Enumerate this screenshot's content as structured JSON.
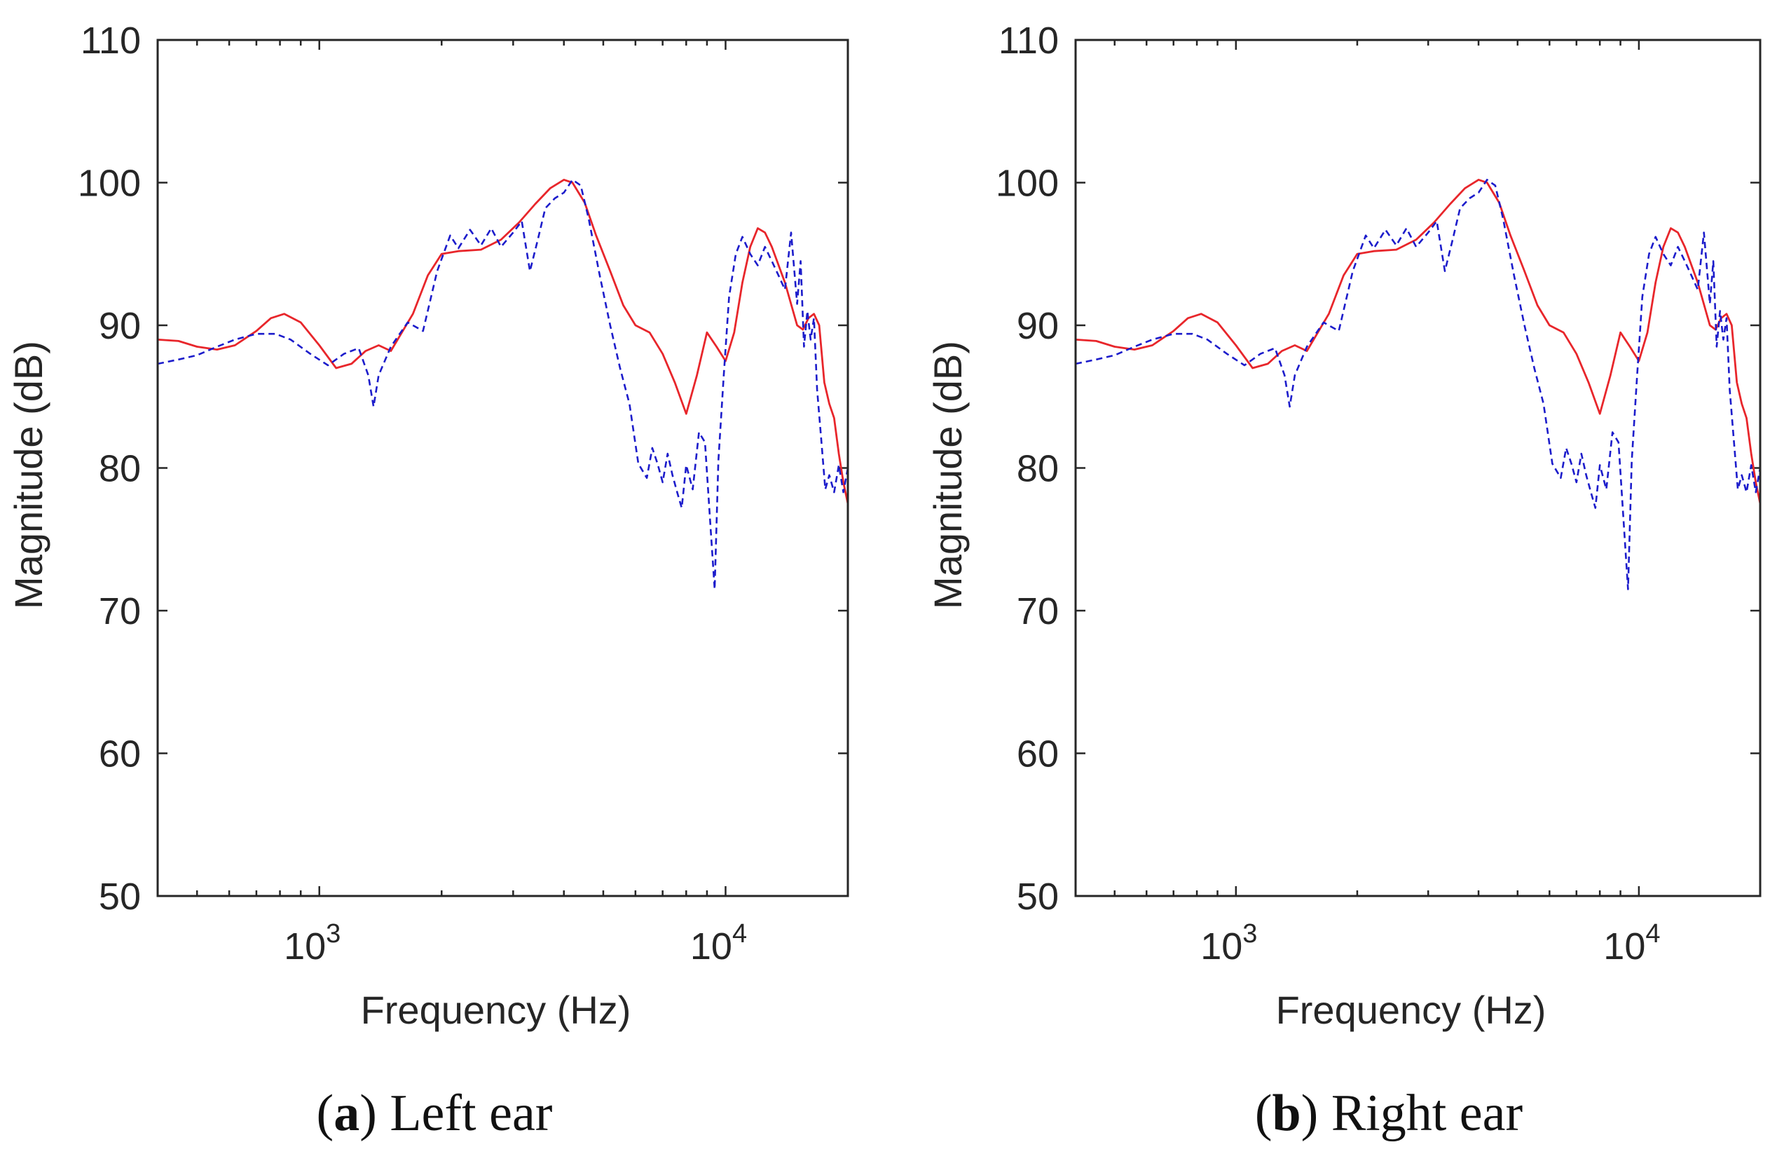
{
  "colors": {
    "measured": "#e8262b",
    "simulated": "#1c1ccb",
    "axis": "#262626"
  },
  "chart_data": [
    {
      "type": "line",
      "panel_letter": "a",
      "caption": "Left ear",
      "xlabel": "Frequency (Hz)",
      "ylabel": "Magnitude (dB)",
      "xscale": "log",
      "xlim": [
        400,
        20000
      ],
      "ylim": [
        50,
        110
      ],
      "yticks": [
        50,
        60,
        70,
        80,
        90,
        100,
        110
      ],
      "ytick_labels": [
        "50",
        "60",
        "70",
        "80",
        "90",
        "100",
        "110"
      ],
      "xticks": [
        {
          "value": 1000,
          "base": "10",
          "exp": "3"
        },
        {
          "value": 10000,
          "base": "10",
          "exp": "4"
        }
      ],
      "grid": false,
      "series": [
        {
          "name": "solid red",
          "style": "solid",
          "color": "#e8262b",
          "x": [
            400,
            450,
            500,
            560,
            620,
            700,
            760,
            820,
            900,
            1000,
            1100,
            1200,
            1300,
            1400,
            1500,
            1700,
            1850,
            2000,
            2200,
            2500,
            2800,
            3100,
            3400,
            3700,
            4000,
            4200,
            4500,
            4800,
            5200,
            5600,
            6000,
            6500,
            7000,
            7500,
            8000,
            8500,
            9000,
            9500,
            10000,
            10500,
            11000,
            11500,
            12000,
            12500,
            13000,
            14000,
            15000,
            15500,
            16000,
            16500,
            17000,
            17500,
            18000,
            18500,
            19000,
            19500,
            20000
          ],
          "y": [
            89,
            88.9,
            88.5,
            88.3,
            88.6,
            89.6,
            90.5,
            90.8,
            90.2,
            88.6,
            87,
            87.3,
            88.2,
            88.6,
            88.2,
            90.8,
            93.5,
            95,
            95.2,
            95.3,
            96,
            97.2,
            98.5,
            99.6,
            100.2,
            100,
            98.6,
            96.3,
            93.8,
            91.4,
            90,
            89.5,
            88,
            86,
            83.8,
            86.5,
            89.5,
            88.5,
            87.5,
            89.5,
            93,
            95.5,
            96.8,
            96.5,
            95.5,
            93,
            90,
            89.7,
            90.5,
            90.8,
            90,
            86,
            84.5,
            83.5,
            81,
            79,
            77.5
          ]
        },
        {
          "name": "dashed blue",
          "style": "dashed",
          "color": "#1c1ccb",
          "x": [
            400,
            450,
            500,
            560,
            620,
            700,
            780,
            850,
            950,
            1050,
            1150,
            1250,
            1320,
            1360,
            1400,
            1500,
            1650,
            1800,
            1950,
            2100,
            2200,
            2350,
            2500,
            2650,
            2800,
            3000,
            3150,
            3300,
            3450,
            3600,
            3800,
            4000,
            4200,
            4400,
            4600,
            4900,
            5200,
            5500,
            5800,
            6100,
            6400,
            6600,
            6800,
            7000,
            7200,
            7400,
            7600,
            7800,
            8000,
            8300,
            8600,
            8900,
            9200,
            9400,
            9600,
            9900,
            10200,
            10600,
            11000,
            11500,
            12000,
            12500,
            13000,
            13500,
            14000,
            14500,
            15000,
            15300,
            15600,
            15900,
            16200,
            16500,
            16800,
            17200,
            17600,
            18000,
            18500,
            19000,
            19500,
            20000
          ],
          "y": [
            87.3,
            87.6,
            87.9,
            88.5,
            89,
            89.4,
            89.4,
            89,
            88,
            87.2,
            88,
            88.4,
            86.5,
            84.3,
            86.5,
            88.5,
            90.2,
            89.6,
            93.8,
            96.3,
            95.4,
            96.7,
            95.6,
            96.8,
            95.5,
            96.5,
            97.3,
            93.8,
            96,
            98.2,
            98.9,
            99.3,
            100.2,
            99.8,
            97.5,
            93.5,
            90,
            87,
            84.5,
            80.3,
            79.3,
            81.4,
            80.3,
            79,
            81,
            79.5,
            78.3,
            77.2,
            80.2,
            78.5,
            82.5,
            81.8,
            75.5,
            71.5,
            80.5,
            86.5,
            92,
            95,
            96.2,
            95,
            94.2,
            95.5,
            94.5,
            93.5,
            92.5,
            96.5,
            91.5,
            94.5,
            88.5,
            91,
            89,
            90.5,
            85.5,
            82,
            78.5,
            79.5,
            78.3,
            80.2,
            78.3,
            80
          ]
        }
      ]
    },
    {
      "type": "line",
      "panel_letter": "b",
      "caption": "Right ear",
      "xlabel": "Frequency (Hz)",
      "ylabel": "Magnitude (dB)",
      "xscale": "log",
      "xlim": [
        400,
        20000
      ],
      "ylim": [
        50,
        110
      ],
      "yticks": [
        50,
        60,
        70,
        80,
        90,
        100,
        110
      ],
      "ytick_labels": [
        "50",
        "60",
        "70",
        "80",
        "90",
        "100",
        "110"
      ],
      "xticks": [
        {
          "value": 1000,
          "base": "10",
          "exp": "3"
        },
        {
          "value": 10000,
          "base": "10",
          "exp": "4"
        }
      ],
      "grid": false,
      "series": [
        {
          "name": "solid red",
          "style": "solid",
          "color": "#e8262b",
          "x": [
            400,
            450,
            500,
            560,
            620,
            700,
            760,
            820,
            900,
            1000,
            1100,
            1200,
            1300,
            1400,
            1500,
            1700,
            1850,
            2000,
            2200,
            2500,
            2800,
            3100,
            3400,
            3700,
            4000,
            4200,
            4500,
            4800,
            5200,
            5600,
            6000,
            6500,
            7000,
            7500,
            8000,
            8500,
            9000,
            9500,
            10000,
            10500,
            11000,
            11500,
            12000,
            12500,
            13000,
            14000,
            15000,
            15500,
            16000,
            16500,
            17000,
            17500,
            18000,
            18500,
            19000,
            19500,
            20000
          ],
          "y": [
            89,
            88.9,
            88.5,
            88.3,
            88.6,
            89.6,
            90.5,
            90.8,
            90.2,
            88.6,
            87,
            87.3,
            88.2,
            88.6,
            88.2,
            90.8,
            93.5,
            95,
            95.2,
            95.3,
            96,
            97.2,
            98.5,
            99.6,
            100.2,
            100,
            98.6,
            96.3,
            93.8,
            91.4,
            90,
            89.5,
            88,
            86,
            83.8,
            86.5,
            89.5,
            88.5,
            87.5,
            89.5,
            93,
            95.5,
            96.8,
            96.5,
            95.5,
            93,
            90,
            89.7,
            90.5,
            90.8,
            90,
            86,
            84.5,
            83.5,
            81,
            79,
            77.5
          ]
        },
        {
          "name": "dashed blue",
          "style": "dashed",
          "color": "#1c1ccb",
          "x": [
            400,
            450,
            500,
            560,
            620,
            700,
            780,
            850,
            950,
            1050,
            1150,
            1250,
            1320,
            1360,
            1400,
            1500,
            1650,
            1800,
            1950,
            2100,
            2200,
            2350,
            2500,
            2650,
            2800,
            3000,
            3150,
            3300,
            3450,
            3600,
            3800,
            4000,
            4200,
            4400,
            4600,
            4900,
            5200,
            5500,
            5800,
            6100,
            6400,
            6600,
            6800,
            7000,
            7200,
            7400,
            7600,
            7800,
            8000,
            8300,
            8600,
            8900,
            9200,
            9400,
            9600,
            9900,
            10200,
            10600,
            11000,
            11500,
            12000,
            12500,
            13000,
            13500,
            14000,
            14500,
            15000,
            15300,
            15600,
            15900,
            16200,
            16500,
            16800,
            17200,
            17600,
            18000,
            18500,
            19000,
            19500,
            20000
          ],
          "y": [
            87.3,
            87.6,
            87.9,
            88.5,
            89,
            89.4,
            89.4,
            89,
            88,
            87.2,
            88,
            88.4,
            86.5,
            84.3,
            86.5,
            88.5,
            90.2,
            89.6,
            93.8,
            96.3,
            95.4,
            96.7,
            95.6,
            96.8,
            95.5,
            96.5,
            97.3,
            93.8,
            96,
            98.2,
            98.9,
            99.3,
            100.2,
            99.8,
            97.5,
            93.5,
            90,
            87,
            84.5,
            80.3,
            79.3,
            81.4,
            80.3,
            79,
            81,
            79.5,
            78.3,
            77.2,
            80.2,
            78.5,
            82.5,
            81.8,
            75.5,
            71.5,
            80.5,
            86.5,
            92,
            95,
            96.2,
            95,
            94.2,
            95.5,
            94.5,
            93.5,
            92.5,
            96.5,
            91.5,
            94.5,
            88.5,
            91,
            89,
            90.5,
            85.5,
            82,
            78.5,
            79.5,
            78.3,
            80.2,
            78.3,
            80
          ]
        }
      ]
    }
  ]
}
